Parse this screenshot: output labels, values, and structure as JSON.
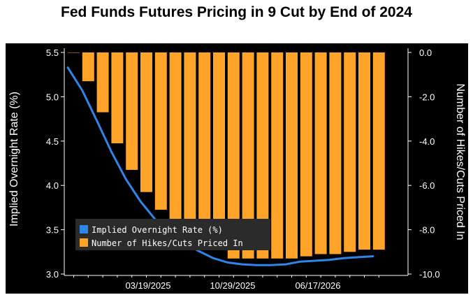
{
  "title": "Fed Funds Futures Pricing in 9 Cut by End of 2024",
  "colors": {
    "background": "#000000",
    "bars": "#ffa329",
    "line": "#2e86e8",
    "text": "#ffffff",
    "title": "#000000"
  },
  "chart_data": {
    "type": "bar+line",
    "title": "Fed Funds Futures Pricing in 9 Cut by End of 2024",
    "xlabel": "",
    "left_ylabel": "Implied Overnight Rate (%)",
    "right_ylabel": "Number of Hikes/Cuts Priced In",
    "left_ylim": [
      3.0,
      5.5
    ],
    "right_ylim": [
      -10.0,
      0.0
    ],
    "left_ticks": [
      "5.5",
      "5.0",
      "4.5",
      "4.0",
      "3.5",
      "3.0"
    ],
    "right_ticks": [
      "0.0",
      "-2.0",
      "-4.0",
      "-6.0",
      "-8.0",
      "-10.0"
    ],
    "x_tick_labels": [
      "03/19/2025",
      "10/29/2025",
      "06/17/2026"
    ],
    "grid": false,
    "legend_position": "bottom-left",
    "series": [
      {
        "name": "Implied Overnight Rate (%)",
        "type": "line",
        "axis": "left",
        "values": [
          5.33,
          5.07,
          4.73,
          4.38,
          4.07,
          3.82,
          3.62,
          3.47,
          3.35,
          3.26,
          3.18,
          3.13,
          3.11,
          3.1,
          3.1,
          3.11,
          3.14,
          3.15,
          3.16,
          3.18,
          3.19,
          3.2
        ]
      },
      {
        "name": "Number of Hikes/Cuts Priced In",
        "type": "bar",
        "axis": "right",
        "values": [
          0.0,
          -1.3,
          -2.7,
          -4.1,
          -5.3,
          -6.3,
          -7.1,
          -7.7,
          -8.1,
          -8.6,
          -8.8,
          -9.3,
          -9.3,
          -9.3,
          -9.3,
          -9.3,
          -9.2,
          -9.1,
          -9.1,
          -9.0,
          -8.9,
          -8.9
        ]
      }
    ]
  }
}
